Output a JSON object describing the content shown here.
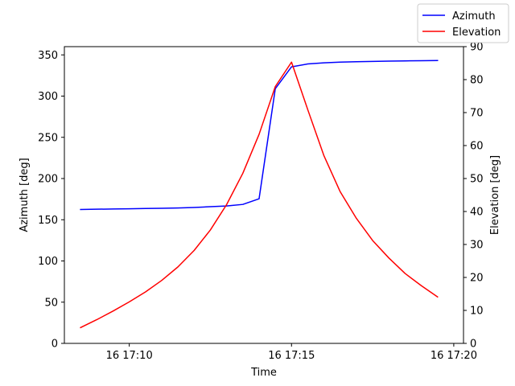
{
  "chart_data": {
    "type": "line",
    "xlabel": "Time",
    "x_ticks": [
      "16 17:10",
      "16 17:15",
      "16 17:20"
    ],
    "x_tick_minutes": [
      10,
      15,
      20
    ],
    "xlim": [
      8.0,
      20.3
    ],
    "x": [
      8.5,
      9.0,
      9.5,
      10.0,
      10.5,
      11.0,
      11.5,
      12.0,
      12.5,
      13.0,
      13.5,
      14.0,
      14.5,
      15.0,
      15.5,
      16.0,
      16.5,
      17.0,
      17.5,
      18.0,
      18.5,
      19.0,
      19.5
    ],
    "left_axis": {
      "label": "Azimuth [deg]",
      "ylim": [
        0,
        360
      ],
      "ticks": [
        0,
        50,
        100,
        150,
        200,
        250,
        300,
        350
      ]
    },
    "right_axis": {
      "label": "Elevation [deg]",
      "ylim": [
        0,
        90
      ],
      "ticks": [
        0,
        10,
        20,
        30,
        40,
        50,
        60,
        70,
        80,
        90
      ]
    },
    "legend_position": "top-right",
    "series": [
      {
        "name": "Azimuth",
        "axis": "left",
        "color": "#0000ff",
        "values": [
          162.5,
          162.8,
          163.0,
          163.3,
          163.6,
          163.9,
          164.3,
          164.9,
          165.8,
          166.7,
          168.6,
          175.4,
          309.0,
          335.5,
          339.0,
          340.4,
          341.2,
          341.7,
          342.1,
          342.4,
          342.7,
          342.9,
          343.1
        ]
      },
      {
        "name": "Elevation",
        "axis": "right",
        "color": "#ff0000",
        "values": [
          4.8,
          7.2,
          9.8,
          12.6,
          15.6,
          19.1,
          23.2,
          28.2,
          34.4,
          42.1,
          51.6,
          63.4,
          77.9,
          85.3,
          70.9,
          56.9,
          46.0,
          37.9,
          31.2,
          25.9,
          21.2,
          17.5,
          14.1
        ]
      }
    ]
  }
}
